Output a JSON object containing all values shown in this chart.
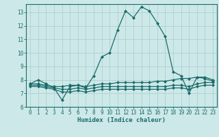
{
  "xlabel": "Humidex (Indice chaleur)",
  "background_color": "#cde8e8",
  "grid_color": "#aed0d0",
  "line_color": "#1a6b6b",
  "xlim": [
    -0.5,
    23.5
  ],
  "ylim": [
    6,
    13.6
  ],
  "yticks": [
    6,
    7,
    8,
    9,
    10,
    11,
    12,
    13
  ],
  "xticks": [
    0,
    1,
    2,
    3,
    4,
    5,
    6,
    7,
    8,
    9,
    10,
    11,
    12,
    13,
    14,
    15,
    16,
    17,
    18,
    19,
    20,
    21,
    22,
    23
  ],
  "lines": [
    {
      "x": [
        0,
        1,
        2,
        3,
        4,
        5,
        6,
        7,
        8,
        9,
        10,
        11,
        12,
        13,
        14,
        15,
        16,
        17,
        18,
        19,
        20,
        21,
        22,
        23
      ],
      "y": [
        7.7,
        8.0,
        7.7,
        7.4,
        6.5,
        7.5,
        7.6,
        7.4,
        8.3,
        9.7,
        10.0,
        11.7,
        13.1,
        12.6,
        13.4,
        13.1,
        12.2,
        11.2,
        8.6,
        8.3,
        7.0,
        8.2,
        8.1,
        7.9
      ]
    },
    {
      "x": [
        0,
        1,
        2,
        3,
        4,
        5,
        6,
        7,
        8,
        9,
        10,
        11,
        12,
        13,
        14,
        15,
        16,
        17,
        18,
        19,
        20,
        21,
        22,
        23
      ],
      "y": [
        7.7,
        7.7,
        7.6,
        7.5,
        7.5,
        7.6,
        7.6,
        7.5,
        7.6,
        7.7,
        7.7,
        7.8,
        7.8,
        7.8,
        7.8,
        7.8,
        7.9,
        7.9,
        8.0,
        8.1,
        8.1,
        8.2,
        8.2,
        8.0
      ]
    },
    {
      "x": [
        0,
        1,
        2,
        3,
        4,
        5,
        6,
        7,
        8,
        9,
        10,
        11,
        12,
        13,
        14,
        15,
        16,
        17,
        18,
        19,
        20,
        21,
        22,
        23
      ],
      "y": [
        7.6,
        7.6,
        7.5,
        7.4,
        7.3,
        7.3,
        7.4,
        7.3,
        7.4,
        7.5,
        7.5,
        7.5,
        7.5,
        7.5,
        7.5,
        7.5,
        7.5,
        7.5,
        7.6,
        7.6,
        7.5,
        7.7,
        7.8,
        7.8
      ]
    },
    {
      "x": [
        0,
        1,
        2,
        3,
        4,
        5,
        6,
        7,
        8,
        9,
        10,
        11,
        12,
        13,
        14,
        15,
        16,
        17,
        18,
        19,
        20,
        21,
        22,
        23
      ],
      "y": [
        7.5,
        7.5,
        7.4,
        7.3,
        7.1,
        7.1,
        7.2,
        7.1,
        7.2,
        7.3,
        7.3,
        7.3,
        7.3,
        7.3,
        7.3,
        7.3,
        7.3,
        7.3,
        7.4,
        7.4,
        7.3,
        7.5,
        7.6,
        7.6
      ]
    }
  ]
}
